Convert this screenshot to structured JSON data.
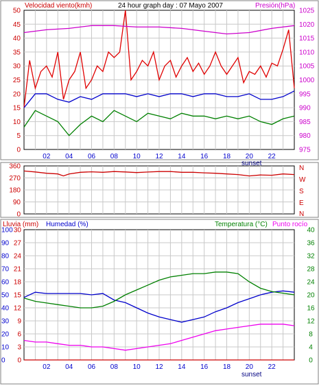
{
  "colors": {
    "wind": "#e00000",
    "pressure": "#cc00cc",
    "gust_avg": "#0000cc",
    "wind_min": "#008000",
    "dir": "#cc0000",
    "rain": "#cc0000",
    "humidity": "#0000cc",
    "temperature": "#008000",
    "dewpoint": "#ee00ee",
    "grid": "#c8c8c8",
    "frame": "#000000",
    "tick_left": "#cc0000",
    "tick_right": "#cc00cc"
  },
  "top": {
    "title_left": "Velocidad viento(kmh)",
    "title_center": "24 hour graph day : 07 Mayo 2007",
    "title_right": "Presión(hPa)"
  },
  "mid": {
    "right_labels": [
      "N",
      "W",
      "S",
      "E",
      "N"
    ]
  },
  "bottom": {
    "label_rain": "Lluvia (mm)",
    "label_humidity": "Humedad (%)",
    "label_temperature": "Temperatura (°C)",
    "label_dewpoint": "Punto rocío"
  },
  "x_ticks": [
    "02",
    "04",
    "06",
    "08",
    "10",
    "12",
    "14",
    "16",
    "18",
    "20",
    "22"
  ],
  "sunset_label": "sunset",
  "chart_data": [
    {
      "type": "line",
      "title": "24 hour graph day : 07 Mayo 2007",
      "x_unit": "hour",
      "xlim": [
        0,
        24
      ],
      "x_ticks": [
        "02",
        "04",
        "06",
        "08",
        "10",
        "12",
        "14",
        "16",
        "18",
        "20",
        "22"
      ],
      "y_left": {
        "label": "Velocidad viento(kmh)",
        "ylim": [
          0,
          50
        ],
        "ticks": [
          0,
          5,
          10,
          15,
          20,
          25,
          30,
          35,
          40,
          45,
          50
        ]
      },
      "y_right": {
        "label": "Presión(hPa)",
        "ylim": [
          975,
          1025
        ],
        "ticks": [
          975,
          980,
          985,
          990,
          995,
          1000,
          1005,
          1010,
          1015,
          1020,
          1025
        ]
      },
      "grid": true,
      "series": [
        {
          "name": "Velocidad viento(kmh)",
          "axis": "left",
          "points": [
            [
              0,
              15
            ],
            [
              0.5,
              32
            ],
            [
              1,
              22
            ],
            [
              1.5,
              28
            ],
            [
              2,
              30
            ],
            [
              2.5,
              26
            ],
            [
              3,
              35
            ],
            [
              3.5,
              18
            ],
            [
              4,
              25
            ],
            [
              4.5,
              28
            ],
            [
              5,
              35
            ],
            [
              5.5,
              22
            ],
            [
              6,
              25
            ],
            [
              6.5,
              30
            ],
            [
              7,
              28
            ],
            [
              7.5,
              35
            ],
            [
              8,
              33
            ],
            [
              8.5,
              35
            ],
            [
              9,
              50
            ],
            [
              9.5,
              25
            ],
            [
              10,
              28
            ],
            [
              10.5,
              32
            ],
            [
              11,
              30
            ],
            [
              11.5,
              35
            ],
            [
              12,
              25
            ],
            [
              12.5,
              30
            ],
            [
              13,
              32
            ],
            [
              13.5,
              26
            ],
            [
              14,
              30
            ],
            [
              14.5,
              33
            ],
            [
              15,
              28
            ],
            [
              15.5,
              31
            ],
            [
              16,
              27
            ],
            [
              16.5,
              30
            ],
            [
              17,
              35
            ],
            [
              17.5,
              30
            ],
            [
              18,
              27
            ],
            [
              18.5,
              30
            ],
            [
              19,
              33
            ],
            [
              19.5,
              24
            ],
            [
              20,
              28
            ],
            [
              20.5,
              27
            ],
            [
              21,
              30
            ],
            [
              21.5,
              26
            ],
            [
              22,
              31
            ],
            [
              22.5,
              30
            ],
            [
              23,
              36
            ],
            [
              23.5,
              43
            ],
            [
              24,
              22
            ]
          ]
        },
        {
          "name": "Presión(hPa)",
          "axis": "right",
          "points": [
            [
              0,
              1017
            ],
            [
              2,
              1018
            ],
            [
              4,
              1018.5
            ],
            [
              6,
              1019.5
            ],
            [
              8,
              1019.5
            ],
            [
              10,
              1019
            ],
            [
              12,
              1019
            ],
            [
              14,
              1018.5
            ],
            [
              16,
              1017.5
            ],
            [
              18,
              1016.5
            ],
            [
              20,
              1017
            ],
            [
              22,
              1018.5
            ],
            [
              24,
              1019.5
            ]
          ]
        },
        {
          "axis": "left",
          "points": [
            [
              0,
              15
            ],
            [
              1,
              20
            ],
            [
              2,
              20
            ],
            [
              3,
              18
            ],
            [
              4,
              17
            ],
            [
              5,
              19
            ],
            [
              6,
              18
            ],
            [
              7,
              20
            ],
            [
              8,
              20
            ],
            [
              9,
              20
            ],
            [
              10,
              19
            ],
            [
              11,
              20
            ],
            [
              12,
              19
            ],
            [
              13,
              20
            ],
            [
              14,
              20
            ],
            [
              15,
              19
            ],
            [
              16,
              20
            ],
            [
              17,
              20
            ],
            [
              18,
              19
            ],
            [
              19,
              19
            ],
            [
              20,
              20
            ],
            [
              21,
              18
            ],
            [
              22,
              18
            ],
            [
              23,
              19
            ],
            [
              24,
              21
            ]
          ]
        },
        {
          "axis": "left",
          "points": [
            [
              0,
              8
            ],
            [
              1,
              14
            ],
            [
              2,
              12
            ],
            [
              3,
              10
            ],
            [
              4,
              5
            ],
            [
              5,
              9
            ],
            [
              6,
              12
            ],
            [
              7,
              10
            ],
            [
              8,
              14
            ],
            [
              9,
              12
            ],
            [
              10,
              10
            ],
            [
              11,
              13
            ],
            [
              12,
              12
            ],
            [
              13,
              11
            ],
            [
              14,
              13
            ],
            [
              15,
              12
            ],
            [
              16,
              12
            ],
            [
              17,
              11
            ],
            [
              18,
              12
            ],
            [
              19,
              11
            ],
            [
              20,
              12
            ],
            [
              21,
              10
            ],
            [
              22,
              9
            ],
            [
              23,
              11
            ],
            [
              24,
              12
            ]
          ]
        }
      ]
    },
    {
      "type": "line",
      "x_unit": "hour",
      "xlim": [
        0,
        24
      ],
      "ylim": [
        0,
        360
      ],
      "y_ticks": [
        0,
        90,
        180,
        270,
        360
      ],
      "grid": true,
      "series": [
        {
          "points": [
            [
              0,
              322
            ],
            [
              1,
              315
            ],
            [
              2,
              305
            ],
            [
              3,
              300
            ],
            [
              3.5,
              285
            ],
            [
              4,
              300
            ],
            [
              5,
              312
            ],
            [
              6,
              316
            ],
            [
              7,
              312
            ],
            [
              8,
              318
            ],
            [
              9,
              315
            ],
            [
              10,
              310
            ],
            [
              11,
              314
            ],
            [
              12,
              318
            ],
            [
              13,
              318
            ],
            [
              14,
              312
            ],
            [
              15,
              312
            ],
            [
              16,
              308
            ],
            [
              17,
              305
            ],
            [
              18,
              300
            ],
            [
              19,
              295
            ],
            [
              20,
              285
            ],
            [
              21,
              292
            ],
            [
              22,
              290
            ],
            [
              23,
              300
            ],
            [
              24,
              295
            ]
          ]
        }
      ]
    },
    {
      "type": "line",
      "x_unit": "hour",
      "xlim": [
        0,
        24
      ],
      "x_ticks": [
        "02",
        "04",
        "06",
        "08",
        "10",
        "12",
        "14",
        "16",
        "18",
        "20",
        "22"
      ],
      "y_left_rain": {
        "label": "Lluvia (mm)",
        "ylim": [
          0,
          30
        ],
        "ticks": [
          0,
          3,
          6,
          9,
          12,
          15,
          18,
          21,
          24,
          27,
          30
        ]
      },
      "y_left_humidity": {
        "label": "Humedad (%)",
        "ylim": [
          0,
          100
        ],
        "ticks": [
          0,
          10,
          20,
          30,
          40,
          50,
          60,
          70,
          80,
          90,
          100
        ]
      },
      "y_right": {
        "label": "Temperatura (°C)",
        "ylim": [
          0,
          40
        ],
        "ticks": [
          0,
          4,
          8,
          12,
          16,
          20,
          24,
          28,
          32,
          36,
          40
        ]
      },
      "grid": true,
      "series": [
        {
          "name": "Lluvia (mm)",
          "axis": "rain",
          "points": [
            [
              0,
              0
            ],
            [
              24,
              0
            ]
          ]
        },
        {
          "name": "Humedad (%)",
          "axis": "humidity",
          "points": [
            [
              0,
              48
            ],
            [
              1,
              52
            ],
            [
              2,
              51
            ],
            [
              3,
              51
            ],
            [
              4,
              51
            ],
            [
              5,
              51
            ],
            [
              6,
              50
            ],
            [
              7,
              51
            ],
            [
              8,
              46
            ],
            [
              9,
              44
            ],
            [
              10,
              40
            ],
            [
              11,
              36
            ],
            [
              12,
              33
            ],
            [
              13,
              31
            ],
            [
              14,
              29
            ],
            [
              15,
              31
            ],
            [
              16,
              33
            ],
            [
              17,
              37
            ],
            [
              18,
              40
            ],
            [
              19,
              44
            ],
            [
              20,
              47
            ],
            [
              21,
              50
            ],
            [
              22,
              52
            ],
            [
              23,
              53
            ],
            [
              24,
              52
            ]
          ]
        },
        {
          "name": "Temperatura (°C)",
          "axis": "right",
          "points": [
            [
              0,
              19
            ],
            [
              1,
              18
            ],
            [
              2,
              17.5
            ],
            [
              3,
              17
            ],
            [
              4,
              16.5
            ],
            [
              5,
              16
            ],
            [
              6,
              16
            ],
            [
              7,
              16.5
            ],
            [
              8,
              18
            ],
            [
              9,
              20
            ],
            [
              10,
              21.5
            ],
            [
              11,
              23
            ],
            [
              12,
              24.5
            ],
            [
              13,
              25.5
            ],
            [
              14,
              26
            ],
            [
              15,
              26.5
            ],
            [
              16,
              26.5
            ],
            [
              17,
              27
            ],
            [
              18,
              27
            ],
            [
              19,
              26.5
            ],
            [
              20,
              24
            ],
            [
              21,
              22
            ],
            [
              22,
              21
            ],
            [
              23,
              20.5
            ],
            [
              24,
              20
            ]
          ]
        },
        {
          "name": "Punto rocío",
          "axis": "right",
          "points": [
            [
              0,
              6
            ],
            [
              1,
              5.5
            ],
            [
              2,
              5.5
            ],
            [
              3,
              5
            ],
            [
              4,
              4.5
            ],
            [
              5,
              4.5
            ],
            [
              6,
              4
            ],
            [
              7,
              4
            ],
            [
              8,
              3.5
            ],
            [
              9,
              3
            ],
            [
              10,
              3.5
            ],
            [
              11,
              4
            ],
            [
              12,
              4.5
            ],
            [
              13,
              5
            ],
            [
              14,
              6
            ],
            [
              15,
              7
            ],
            [
              16,
              8
            ],
            [
              17,
              9
            ],
            [
              18,
              9.5
            ],
            [
              19,
              10
            ],
            [
              20,
              10.5
            ],
            [
              21,
              11
            ],
            [
              22,
              11
            ],
            [
              23,
              11
            ],
            [
              24,
              10.5
            ]
          ]
        }
      ]
    }
  ]
}
